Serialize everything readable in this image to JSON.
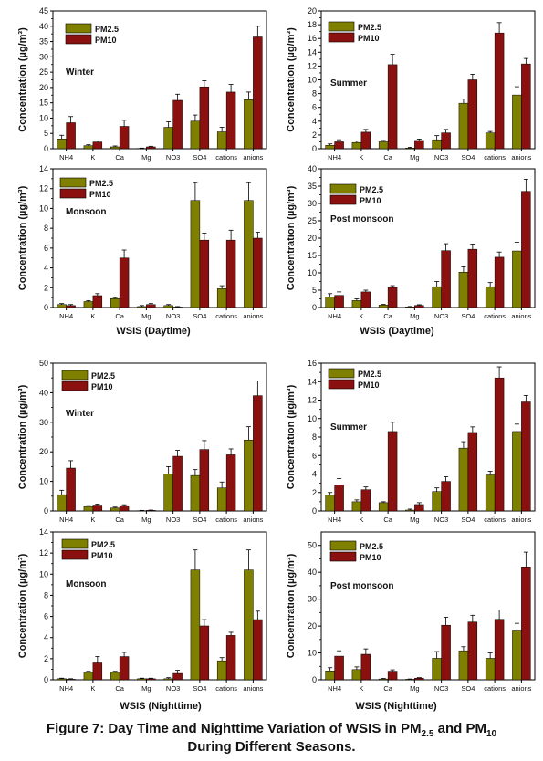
{
  "caption": {
    "line1_prefix": "Figure 7: Day Time and Nighttime Variation of WSIS in PM",
    "sub1": "2.5",
    "and": " and PM",
    "sub2": "10",
    "line2": "During Different Seasons."
  },
  "ylabel": "Concentration (µg/m³)",
  "xlabel_day": "WSIS (Daytime)",
  "xlabel_night": "WSIS (Nighttime)",
  "legend": [
    "PM2.5",
    "PM10"
  ],
  "colors": {
    "pm25": "#808000",
    "pm10": "#8B1010"
  },
  "categories": [
    "NH4",
    "K",
    "Ca",
    "Mg",
    "NO3",
    "SO4",
    "cations",
    "anions"
  ],
  "chart_data": [
    {
      "type": "bar",
      "season": "Winter",
      "time": "Daytime",
      "ylim": [
        0,
        45
      ],
      "yticks": [
        0,
        5,
        10,
        15,
        20,
        25,
        30,
        35,
        40,
        45
      ],
      "categories": [
        "NH4",
        "K",
        "Ca",
        "Mg",
        "NO3",
        "SO4",
        "cations",
        "anions"
      ],
      "series": [
        {
          "name": "PM2.5",
          "values": [
            3.2,
            1.0,
            0.6,
            0.1,
            7.0,
            9.0,
            5.5,
            16.0
          ],
          "errors": [
            1.2,
            0.3,
            0.3,
            0.1,
            1.8,
            2.0,
            1.5,
            2.5
          ]
        },
        {
          "name": "PM10",
          "values": [
            8.5,
            2.2,
            7.3,
            0.6,
            15.8,
            20.2,
            18.5,
            36.5
          ],
          "errors": [
            2.0,
            0.3,
            2.0,
            0.2,
            2.0,
            2.0,
            2.5,
            3.5
          ]
        }
      ]
    },
    {
      "type": "bar",
      "season": "Summer",
      "time": "Daytime",
      "ylim": [
        0,
        20
      ],
      "yticks": [
        0,
        2,
        4,
        6,
        8,
        10,
        12,
        14,
        16,
        18,
        20
      ],
      "categories": [
        "NH4",
        "K",
        "Ca",
        "Mg",
        "NO3",
        "SO4",
        "cations",
        "anions"
      ],
      "series": [
        {
          "name": "PM2.5",
          "values": [
            0.5,
            0.9,
            1.0,
            0.1,
            1.3,
            6.6,
            2.3,
            7.8
          ],
          "errors": [
            0.2,
            0.2,
            0.2,
            0.1,
            0.6,
            0.6,
            0.2,
            1.2
          ]
        },
        {
          "name": "PM10",
          "values": [
            1.0,
            2.4,
            12.2,
            1.2,
            2.3,
            10.0,
            16.8,
            12.3
          ],
          "errors": [
            0.3,
            0.4,
            1.5,
            0.2,
            0.5,
            0.8,
            1.5,
            0.8
          ]
        }
      ]
    },
    {
      "type": "bar",
      "season": "Monsoon",
      "time": "Daytime",
      "ylim": [
        0,
        14
      ],
      "yticks": [
        0,
        2,
        4,
        6,
        8,
        10,
        12,
        14
      ],
      "categories": [
        "NH4",
        "K",
        "Ca",
        "Mg",
        "NO3",
        "SO4",
        "cations",
        "anions"
      ],
      "series": [
        {
          "name": "PM2.5",
          "values": [
            0.3,
            0.6,
            0.9,
            0.1,
            0.2,
            10.8,
            1.9,
            10.8
          ],
          "errors": [
            0.1,
            0.1,
            0.1,
            0.1,
            0.1,
            1.8,
            0.3,
            1.8
          ]
        },
        {
          "name": "PM10",
          "values": [
            0.2,
            1.2,
            5.0,
            0.3,
            0.05,
            6.8,
            6.8,
            7.0
          ],
          "errors": [
            0.1,
            0.2,
            0.8,
            0.1,
            0.05,
            0.7,
            1.0,
            0.6
          ]
        }
      ]
    },
    {
      "type": "bar",
      "season": "Post monsoon",
      "time": "Daytime",
      "ylim": [
        0,
        40
      ],
      "yticks": [
        0,
        5,
        10,
        15,
        20,
        25,
        30,
        35,
        40
      ],
      "categories": [
        "NH4",
        "K",
        "Ca",
        "Mg",
        "NO3",
        "SO4",
        "cations",
        "anions"
      ],
      "series": [
        {
          "name": "PM2.5",
          "values": [
            3.0,
            2.0,
            0.7,
            0.2,
            6.0,
            10.2,
            6.0,
            16.3
          ],
          "errors": [
            1.0,
            0.5,
            0.2,
            0.1,
            1.5,
            1.5,
            1.2,
            2.5
          ]
        },
        {
          "name": "PM10",
          "values": [
            3.5,
            4.5,
            5.8,
            0.6,
            16.4,
            16.8,
            14.5,
            33.5
          ],
          "errors": [
            1.0,
            0.5,
            0.5,
            0.2,
            2.0,
            1.5,
            1.5,
            3.5
          ]
        }
      ]
    },
    {
      "type": "bar",
      "season": "Winter",
      "time": "Nighttime",
      "ylim": [
        0,
        50
      ],
      "yticks": [
        0,
        10,
        20,
        30,
        40,
        50
      ],
      "categories": [
        "NH4",
        "K",
        "Ca",
        "Mg",
        "NO3",
        "SO4",
        "cations",
        "anions"
      ],
      "series": [
        {
          "name": "PM2.5",
          "values": [
            5.5,
            1.5,
            1.0,
            0.1,
            12.5,
            12.0,
            7.8,
            24.0
          ],
          "errors": [
            1.5,
            0.3,
            0.3,
            0.1,
            2.5,
            2.0,
            2.0,
            4.5
          ]
        },
        {
          "name": "PM10",
          "values": [
            14.5,
            2.0,
            1.8,
            0.2,
            18.5,
            20.8,
            19.0,
            39.0
          ],
          "errors": [
            2.5,
            0.3,
            0.3,
            0.1,
            2.0,
            3.0,
            2.0,
            5.0
          ]
        }
      ]
    },
    {
      "type": "bar",
      "season": "Summer",
      "time": "Nighttime",
      "ylim": [
        0,
        16
      ],
      "yticks": [
        0,
        2,
        4,
        6,
        8,
        10,
        12,
        14,
        16
      ],
      "categories": [
        "NH4",
        "K",
        "Ca",
        "Mg",
        "NO3",
        "SO4",
        "cations",
        "anions"
      ],
      "series": [
        {
          "name": "PM2.5",
          "values": [
            1.7,
            1.0,
            0.9,
            0.1,
            2.1,
            6.8,
            3.9,
            8.6
          ],
          "errors": [
            0.3,
            0.2,
            0.1,
            0.1,
            0.4,
            0.7,
            0.4,
            0.8
          ]
        },
        {
          "name": "PM10",
          "values": [
            2.8,
            2.3,
            8.6,
            0.7,
            3.2,
            8.5,
            14.4,
            11.8
          ],
          "errors": [
            0.7,
            0.3,
            1.0,
            0.2,
            0.5,
            0.6,
            1.2,
            0.7
          ]
        }
      ]
    },
    {
      "type": "bar",
      "season": "Monsoon",
      "time": "Nighttime",
      "ylim": [
        0,
        14
      ],
      "yticks": [
        0,
        2,
        4,
        6,
        8,
        10,
        12,
        14
      ],
      "categories": [
        "NH4",
        "K",
        "Ca",
        "Mg",
        "NO3",
        "SO4",
        "cations",
        "anions"
      ],
      "series": [
        {
          "name": "PM2.5",
          "values": [
            0.1,
            0.7,
            0.7,
            0.1,
            0.1,
            10.4,
            1.8,
            10.4
          ],
          "errors": [
            0.05,
            0.1,
            0.1,
            0.05,
            0.1,
            1.9,
            0.3,
            1.9
          ]
        },
        {
          "name": "PM10",
          "values": [
            0.05,
            1.6,
            2.2,
            0.1,
            0.6,
            5.1,
            4.2,
            5.7
          ],
          "errors": [
            0.05,
            0.6,
            0.4,
            0.05,
            0.3,
            0.6,
            0.3,
            0.8
          ]
        }
      ]
    },
    {
      "type": "bar",
      "season": "Post monsoon",
      "time": "Nighttime",
      "ylim": [
        0,
        55
      ],
      "yticks": [
        0,
        10,
        20,
        30,
        40,
        50
      ],
      "categories": [
        "NH4",
        "K",
        "Ca",
        "Mg",
        "NO3",
        "SO4",
        "cations",
        "anions"
      ],
      "series": [
        {
          "name": "PM2.5",
          "values": [
            3.3,
            3.8,
            0.3,
            0.2,
            8.0,
            10.8,
            8.0,
            18.5
          ],
          "errors": [
            1.2,
            1.0,
            0.2,
            0.1,
            2.5,
            1.5,
            2.0,
            2.5
          ]
        },
        {
          "name": "PM10",
          "values": [
            8.8,
            9.5,
            3.2,
            0.6,
            20.3,
            21.5,
            22.5,
            42.0
          ],
          "errors": [
            2.0,
            2.0,
            0.5,
            0.2,
            3.0,
            2.5,
            3.5,
            5.5
          ]
        }
      ]
    }
  ]
}
